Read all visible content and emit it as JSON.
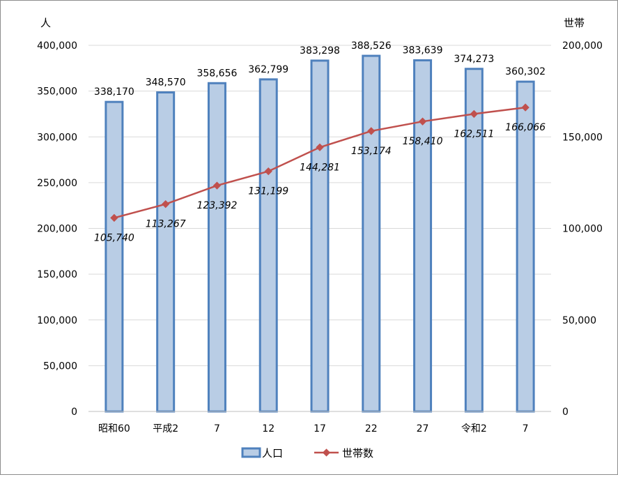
{
  "chart_data": {
    "type": "bar+line",
    "categories": [
      "昭和60",
      "平成2",
      "7",
      "12",
      "17",
      "22",
      "27",
      "令和2",
      "7"
    ],
    "series": [
      {
        "name": "人口",
        "type": "bar",
        "axis": "left",
        "values": [
          338170,
          348570,
          358656,
          362799,
          383298,
          388526,
          383639,
          374273,
          360302
        ],
        "labels": [
          "338,170",
          "348,570",
          "358,656",
          "362,799",
          "383,298",
          "388,526",
          "383,639",
          "374,273",
          "360,302"
        ]
      },
      {
        "name": "世帯数",
        "type": "line",
        "axis": "right",
        "values": [
          105740,
          113267,
          123392,
          131199,
          144281,
          153174,
          158410,
          162511,
          166066
        ],
        "labels": [
          "105,740",
          "113,267",
          "123,392",
          "131,199",
          "144,281",
          "153,174",
          "158,410",
          "162,511",
          "166,066"
        ]
      }
    ],
    "y_left": {
      "title": "人",
      "range": [
        0,
        400000
      ],
      "ticks": [
        "0",
        "50,000",
        "100,000",
        "150,000",
        "200,000",
        "250,000",
        "300,000",
        "350,000",
        "400,000"
      ]
    },
    "y_right": {
      "title": "世帯",
      "range": [
        0,
        200000
      ],
      "ticks": [
        "0",
        "50,000",
        "100,000",
        "150,000",
        "200,000"
      ]
    },
    "grid": true,
    "legend": "bottom",
    "colors": {
      "bar_fill": "#b9cde5",
      "bar_stroke": "#4f81bd",
      "line": "#c0504d",
      "grid": "#d9d9d9",
      "axis": "#bfbfbf"
    }
  }
}
